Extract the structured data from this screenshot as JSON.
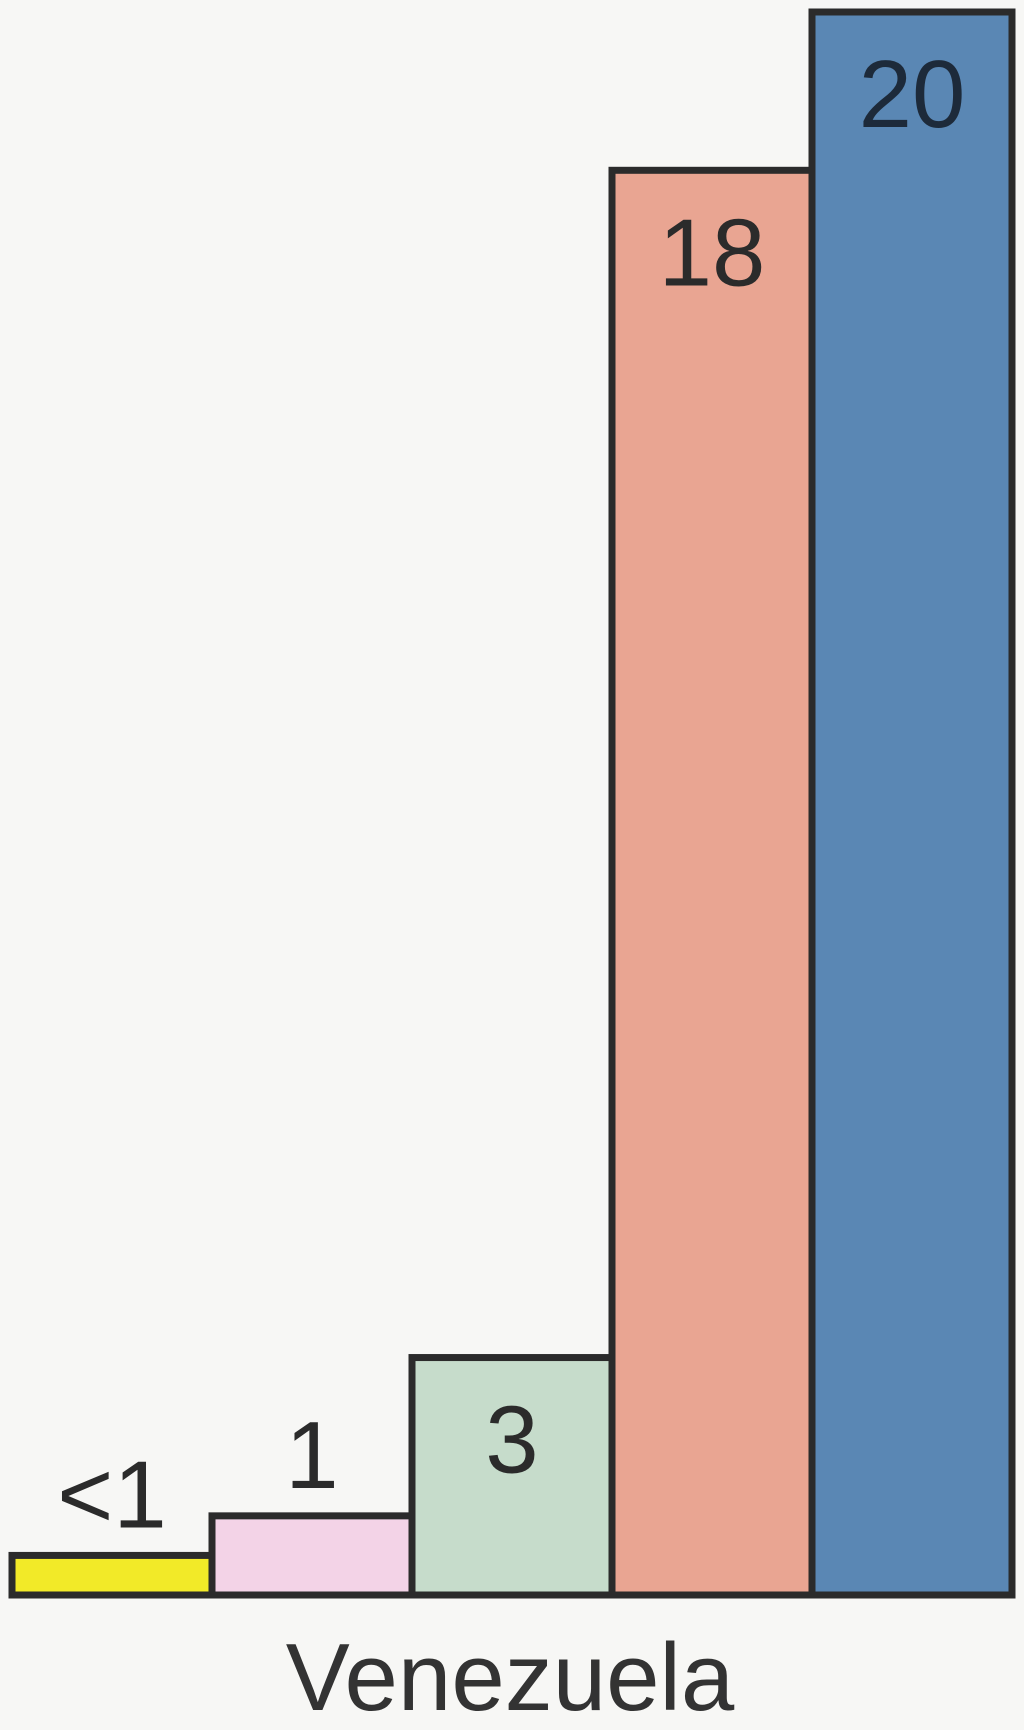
{
  "chart_data": {
    "type": "bar",
    "xlabel": "Venezuela",
    "values": [
      0.5,
      1,
      3,
      18,
      20
    ],
    "value_labels": [
      "<1",
      "1",
      "3",
      "18",
      "20"
    ],
    "colors": [
      "#f2ea28",
      "#f3d3e7",
      "#c6dccb",
      "#e9a592",
      "#5a87b4"
    ],
    "label_placement": [
      "above",
      "above",
      "inside",
      "inside",
      "inside"
    ],
    "ylim": [
      0,
      20
    ],
    "grid": false,
    "legend": "none"
  }
}
